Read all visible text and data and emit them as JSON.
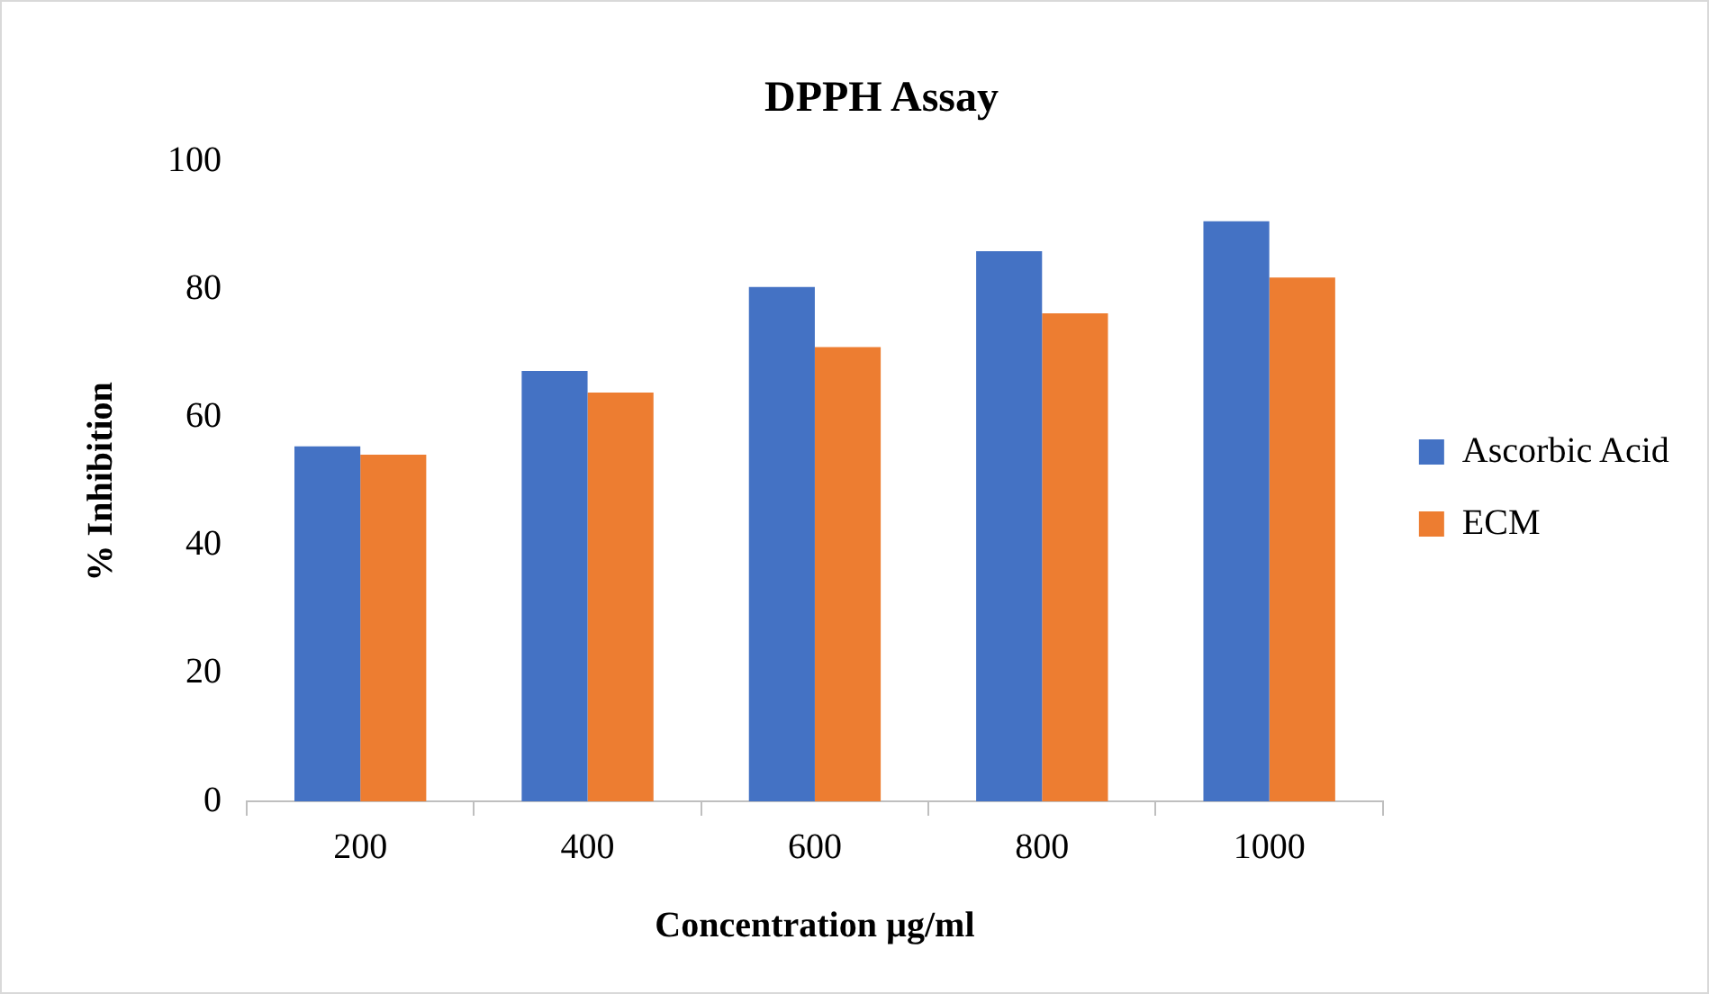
{
  "chart_data": {
    "type": "bar",
    "title": "DPPH Assay",
    "xlabel": "Concentration µg/ml",
    "ylabel": "% Inhibition",
    "categories": [
      "200",
      "400",
      "600",
      "800",
      "1000"
    ],
    "series": [
      {
        "name": "Ascorbic Acid",
        "color": "#4472c4",
        "values": [
          55.5,
          67.3,
          80.4,
          86.0,
          90.7
        ]
      },
      {
        "name": "ECM",
        "color": "#ed7d31",
        "values": [
          54.2,
          63.9,
          71.0,
          76.3,
          81.9
        ]
      }
    ],
    "ylim": [
      0,
      100
    ],
    "yticks": [
      0,
      20,
      40,
      60,
      80,
      100
    ],
    "grid": false,
    "legend": "right"
  }
}
